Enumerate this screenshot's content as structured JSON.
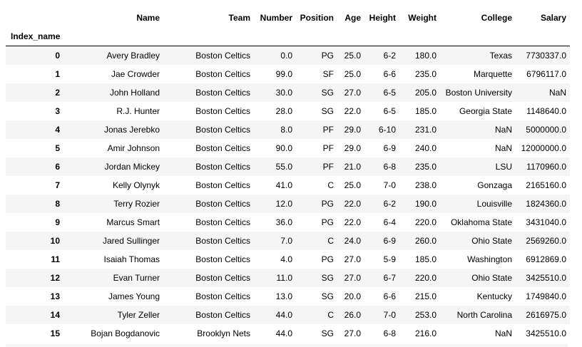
{
  "index_name": "Index_name",
  "columns": [
    "Name",
    "Team",
    "Number",
    "Position",
    "Age",
    "Height",
    "Weight",
    "College",
    "Salary"
  ],
  "rows": [
    {
      "index": "0",
      "cells": [
        "Avery Bradley",
        "Boston Celtics",
        "0.0",
        "PG",
        "25.0",
        "6-2",
        "180.0",
        "Texas",
        "7730337.0"
      ]
    },
    {
      "index": "1",
      "cells": [
        "Jae Crowder",
        "Boston Celtics",
        "99.0",
        "SF",
        "25.0",
        "6-6",
        "235.0",
        "Marquette",
        "6796117.0"
      ]
    },
    {
      "index": "2",
      "cells": [
        "John Holland",
        "Boston Celtics",
        "30.0",
        "SG",
        "27.0",
        "6-5",
        "205.0",
        "Boston University",
        "NaN"
      ]
    },
    {
      "index": "3",
      "cells": [
        "R.J. Hunter",
        "Boston Celtics",
        "28.0",
        "SG",
        "22.0",
        "6-5",
        "185.0",
        "Georgia State",
        "1148640.0"
      ]
    },
    {
      "index": "4",
      "cells": [
        "Jonas Jerebko",
        "Boston Celtics",
        "8.0",
        "PF",
        "29.0",
        "6-10",
        "231.0",
        "NaN",
        "5000000.0"
      ]
    },
    {
      "index": "5",
      "cells": [
        "Amir Johnson",
        "Boston Celtics",
        "90.0",
        "PF",
        "29.0",
        "6-9",
        "240.0",
        "NaN",
        "12000000.0"
      ]
    },
    {
      "index": "6",
      "cells": [
        "Jordan Mickey",
        "Boston Celtics",
        "55.0",
        "PF",
        "21.0",
        "6-8",
        "235.0",
        "LSU",
        "1170960.0"
      ]
    },
    {
      "index": "7",
      "cells": [
        "Kelly Olynyk",
        "Boston Celtics",
        "41.0",
        "C",
        "25.0",
        "7-0",
        "238.0",
        "Gonzaga",
        "2165160.0"
      ]
    },
    {
      "index": "8",
      "cells": [
        "Terry Rozier",
        "Boston Celtics",
        "12.0",
        "PG",
        "22.0",
        "6-2",
        "190.0",
        "Louisville",
        "1824360.0"
      ]
    },
    {
      "index": "9",
      "cells": [
        "Marcus Smart",
        "Boston Celtics",
        "36.0",
        "PG",
        "22.0",
        "6-4",
        "220.0",
        "Oklahoma State",
        "3431040.0"
      ]
    },
    {
      "index": "10",
      "cells": [
        "Jared Sullinger",
        "Boston Celtics",
        "7.0",
        "C",
        "24.0",
        "6-9",
        "260.0",
        "Ohio State",
        "2569260.0"
      ]
    },
    {
      "index": "11",
      "cells": [
        "Isaiah Thomas",
        "Boston Celtics",
        "4.0",
        "PG",
        "27.0",
        "5-9",
        "185.0",
        "Washington",
        "6912869.0"
      ]
    },
    {
      "index": "12",
      "cells": [
        "Evan Turner",
        "Boston Celtics",
        "11.0",
        "SG",
        "27.0",
        "6-7",
        "220.0",
        "Ohio State",
        "3425510.0"
      ]
    },
    {
      "index": "13",
      "cells": [
        "James Young",
        "Boston Celtics",
        "13.0",
        "SG",
        "20.0",
        "6-6",
        "215.0",
        "Kentucky",
        "1749840.0"
      ]
    },
    {
      "index": "14",
      "cells": [
        "Tyler Zeller",
        "Boston Celtics",
        "44.0",
        "C",
        "26.0",
        "7-0",
        "253.0",
        "North Carolina",
        "2616975.0"
      ]
    },
    {
      "index": "15",
      "cells": [
        "Bojan Bogdanovic",
        "Brooklyn Nets",
        "44.0",
        "SG",
        "27.0",
        "6-8",
        "216.0",
        "NaN",
        "3425510.0"
      ]
    }
  ]
}
